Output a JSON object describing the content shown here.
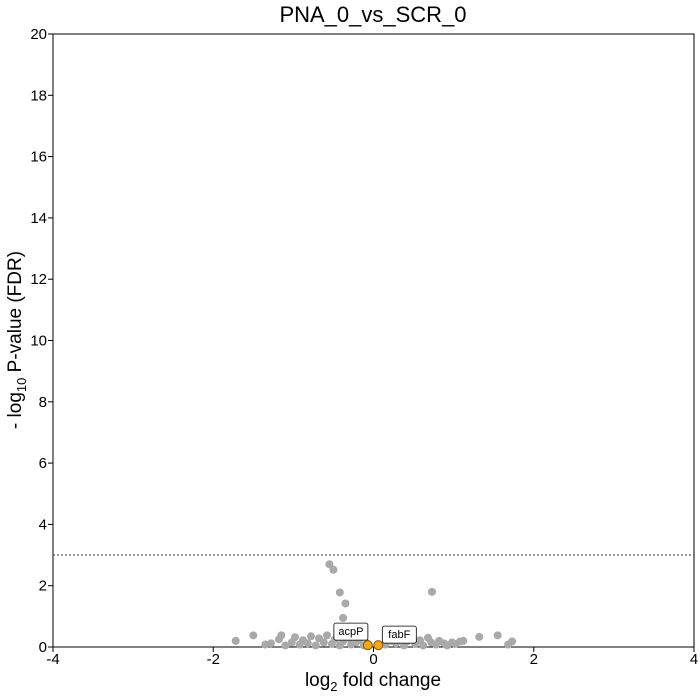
{
  "chart_data": {
    "type": "scatter",
    "title": "PNA_0_vs_SCR_0",
    "xlabel": {
      "prefix": "log",
      "sub": "2",
      "suffix": " fold change"
    },
    "ylabel": {
      "prefix": "- log",
      "sub": "10",
      "suffix": " P-value (FDR)"
    },
    "xlim": [
      -4,
      4
    ],
    "ylim": [
      0,
      20
    ],
    "x_ticks": [
      -4,
      -2,
      0,
      2,
      4
    ],
    "y_ticks": [
      0,
      2,
      4,
      6,
      8,
      10,
      12,
      14,
      16,
      18,
      20
    ],
    "threshold_y": 3,
    "grid": false,
    "colors": {
      "points": "#a9a9a9",
      "highlight": "#f5a623",
      "highlight_stroke": "#8a5a00",
      "threshold": "#333333"
    },
    "points": [
      {
        "x": -1.72,
        "y": 0.2
      },
      {
        "x": -1.5,
        "y": 0.38
      },
      {
        "x": -1.35,
        "y": 0.08
      },
      {
        "x": -1.28,
        "y": 0.12
      },
      {
        "x": -1.18,
        "y": 0.25
      },
      {
        "x": -1.15,
        "y": 0.38
      },
      {
        "x": -1.1,
        "y": 0.05
      },
      {
        "x": -1.02,
        "y": 0.15
      },
      {
        "x": -0.98,
        "y": 0.32
      },
      {
        "x": -0.92,
        "y": 0.08
      },
      {
        "x": -0.88,
        "y": 0.22
      },
      {
        "x": -0.82,
        "y": 0.12
      },
      {
        "x": -0.78,
        "y": 0.35
      },
      {
        "x": -0.72,
        "y": 0.05
      },
      {
        "x": -0.68,
        "y": 0.28
      },
      {
        "x": -0.62,
        "y": 0.15
      },
      {
        "x": -0.58,
        "y": 0.38
      },
      {
        "x": -0.52,
        "y": 0.1
      },
      {
        "x": -0.48,
        "y": 0.25
      },
      {
        "x": -0.42,
        "y": 0.05
      },
      {
        "x": -0.38,
        "y": 0.18
      },
      {
        "x": -0.32,
        "y": 0.3
      },
      {
        "x": -0.28,
        "y": 0.08
      },
      {
        "x": -0.22,
        "y": 0.15
      },
      {
        "x": -0.18,
        "y": 0.22
      },
      {
        "x": -0.12,
        "y": 0.05
      },
      {
        "x": -0.08,
        "y": 0.12
      },
      {
        "x": 0.15,
        "y": 0.08
      },
      {
        "x": 0.22,
        "y": 0.2
      },
      {
        "x": 0.28,
        "y": 0.12
      },
      {
        "x": 0.32,
        "y": 0.3
      },
      {
        "x": 0.38,
        "y": 0.05
      },
      {
        "x": 0.42,
        "y": 0.18
      },
      {
        "x": 0.48,
        "y": 0.25
      },
      {
        "x": 0.52,
        "y": 0.1
      },
      {
        "x": 0.58,
        "y": 0.22
      },
      {
        "x": 0.62,
        "y": 0.05
      },
      {
        "x": 0.68,
        "y": 0.3
      },
      {
        "x": 0.72,
        "y": 0.15
      },
      {
        "x": 0.78,
        "y": 0.08
      },
      {
        "x": 0.82,
        "y": 0.2
      },
      {
        "x": 0.88,
        "y": 0.12
      },
      {
        "x": 0.92,
        "y": 0.05
      },
      {
        "x": 0.98,
        "y": 0.15
      },
      {
        "x": 1.02,
        "y": 0.1
      },
      {
        "x": 1.08,
        "y": 0.18
      },
      {
        "x": 1.12,
        "y": 0.2
      },
      {
        "x": 1.32,
        "y": 0.33
      },
      {
        "x": 1.55,
        "y": 0.38
      },
      {
        "x": 1.68,
        "y": 0.08
      },
      {
        "x": 1.73,
        "y": 0.18
      },
      {
        "x": -0.55,
        "y": 2.7
      },
      {
        "x": -0.5,
        "y": 2.52
      },
      {
        "x": -0.42,
        "y": 1.78
      },
      {
        "x": -0.35,
        "y": 1.42
      },
      {
        "x": -0.38,
        "y": 0.95
      },
      {
        "x": 0.73,
        "y": 1.8
      }
    ],
    "highlighted": [
      {
        "x": -0.07,
        "y": 0.06,
        "label": "acpP"
      },
      {
        "x": 0.06,
        "y": 0.06,
        "label": "fabF"
      }
    ]
  }
}
